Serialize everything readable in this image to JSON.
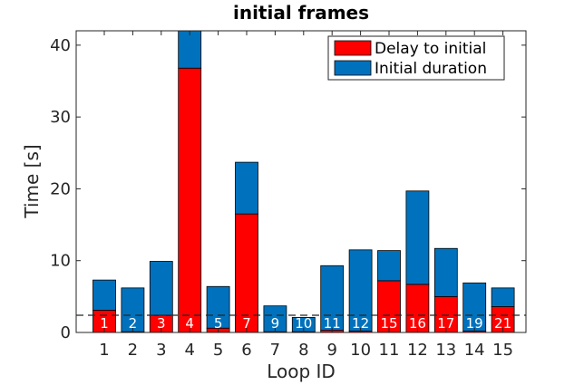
{
  "chart_data": {
    "type": "bar",
    "stacked": true,
    "title": "initial frames",
    "xlabel": "Loop ID",
    "ylabel": "Time [s]",
    "categories": [
      "1",
      "2",
      "3",
      "4",
      "5",
      "6",
      "7",
      "8",
      "9",
      "10",
      "11",
      "12",
      "13",
      "14",
      "15"
    ],
    "bar_labels": [
      "1",
      "2",
      "3",
      "4",
      "5",
      "7",
      "9",
      "10",
      "11",
      "12",
      "15",
      "16",
      "17",
      "19",
      "21"
    ],
    "series": [
      {
        "name": "Delay to initial",
        "color": "#ff0000",
        "values": [
          3.1,
          0.1,
          2.4,
          36.8,
          0.6,
          16.5,
          0.1,
          0.1,
          0.3,
          0.2,
          7.2,
          6.7,
          5.0,
          0.2,
          3.6
        ]
      },
      {
        "name": "Initial duration",
        "color": "#0072bd",
        "values": [
          4.2,
          6.1,
          7.5,
          5.5,
          5.8,
          7.2,
          3.6,
          2.0,
          9.0,
          11.3,
          4.2,
          13.0,
          6.7,
          6.7,
          2.6
        ]
      }
    ],
    "threshold": 2.4,
    "ylim": [
      0,
      42
    ],
    "yticks": [
      0,
      10,
      20,
      30,
      40
    ],
    "legend_position": "top-right",
    "grid": false
  }
}
